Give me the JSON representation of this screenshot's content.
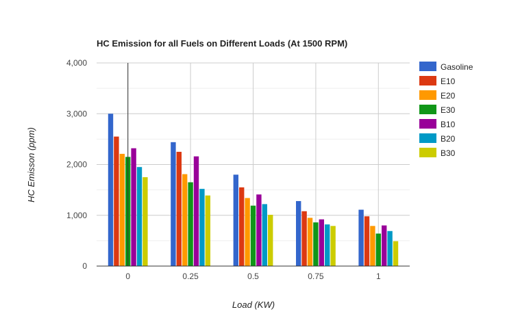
{
  "chart_data": {
    "type": "bar",
    "title": "HC Emission for all Fuels on Different Loads (At 1500 RPM)",
    "xlabel": "Load (KW)",
    "ylabel": "HC Emisson (ppm)",
    "categories": [
      "0",
      "0.25",
      "0.5",
      "0.75",
      "1"
    ],
    "ylim": [
      0,
      4000
    ],
    "yticks": [
      0,
      1000,
      2000,
      3000,
      4000
    ],
    "ytick_labels": [
      "0",
      "1,000",
      "2,000",
      "3,000",
      "4,000"
    ],
    "grid": true,
    "legend_position": "right",
    "series": [
      {
        "name": "Gasoline",
        "color": "#3366cc",
        "values": [
          3000,
          2440,
          1800,
          1280,
          1110
        ]
      },
      {
        "name": "E10",
        "color": "#dc3912",
        "values": [
          2550,
          2250,
          1550,
          1080,
          980
        ]
      },
      {
        "name": "E20",
        "color": "#ff9900",
        "values": [
          2210,
          1810,
          1340,
          950,
          790
        ]
      },
      {
        "name": "E30",
        "color": "#109618",
        "values": [
          2150,
          1650,
          1190,
          860,
          640
        ]
      },
      {
        "name": "B10",
        "color": "#990099",
        "values": [
          2320,
          2160,
          1410,
          920,
          800
        ]
      },
      {
        "name": "B20",
        "color": "#0099c6",
        "values": [
          1950,
          1520,
          1220,
          820,
          690
        ]
      },
      {
        "name": "B30",
        "color": "#cccc00",
        "values": [
          1750,
          1390,
          1010,
          790,
          490
        ]
      }
    ]
  }
}
